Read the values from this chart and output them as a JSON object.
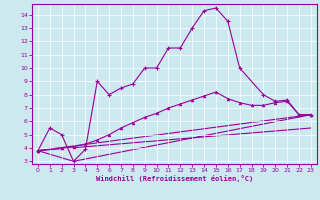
{
  "xlabel": "Windchill (Refroidissement éolien,°C)",
  "xlim": [
    -0.5,
    23.5
  ],
  "ylim": [
    2.8,
    14.8
  ],
  "yticks": [
    3,
    4,
    5,
    6,
    7,
    8,
    9,
    10,
    11,
    12,
    13,
    14
  ],
  "xticks": [
    0,
    1,
    2,
    3,
    4,
    5,
    6,
    7,
    8,
    9,
    10,
    11,
    12,
    13,
    14,
    15,
    16,
    17,
    18,
    19,
    20,
    21,
    22,
    23
  ],
  "bg_color": "#cce9f0",
  "line_color": "#990099",
  "grid_color": "#ffffff",
  "line1_x": [
    0,
    1,
    2,
    3,
    4,
    5,
    6,
    7,
    8,
    9,
    10,
    11,
    12,
    13,
    14,
    15,
    16,
    17,
    19,
    20,
    21,
    22,
    23
  ],
  "line1_y": [
    3.8,
    5.5,
    5.0,
    3.0,
    3.9,
    9.0,
    8.0,
    8.5,
    8.8,
    10.0,
    10.0,
    11.5,
    11.5,
    13.0,
    14.3,
    14.5,
    13.5,
    10.0,
    8.0,
    7.5,
    7.6,
    6.5,
    6.5
  ],
  "line2_x": [
    0,
    2,
    3,
    4,
    5,
    6,
    7,
    8,
    9,
    10,
    11,
    12,
    13,
    14,
    15,
    16,
    17,
    18,
    19,
    20,
    21,
    22,
    23
  ],
  "line2_y": [
    3.8,
    4.0,
    4.1,
    4.3,
    4.6,
    5.0,
    5.5,
    5.9,
    6.3,
    6.6,
    7.0,
    7.3,
    7.6,
    7.9,
    8.2,
    7.7,
    7.4,
    7.2,
    7.2,
    7.4,
    7.5,
    6.5,
    6.5
  ],
  "line3_x": [
    0,
    23
  ],
  "line3_y": [
    3.8,
    6.5
  ],
  "line4_x": [
    0,
    3,
    23
  ],
  "line4_y": [
    3.8,
    3.0,
    6.5
  ],
  "line5_x": [
    0,
    23
  ],
  "line5_y": [
    3.8,
    5.5
  ]
}
